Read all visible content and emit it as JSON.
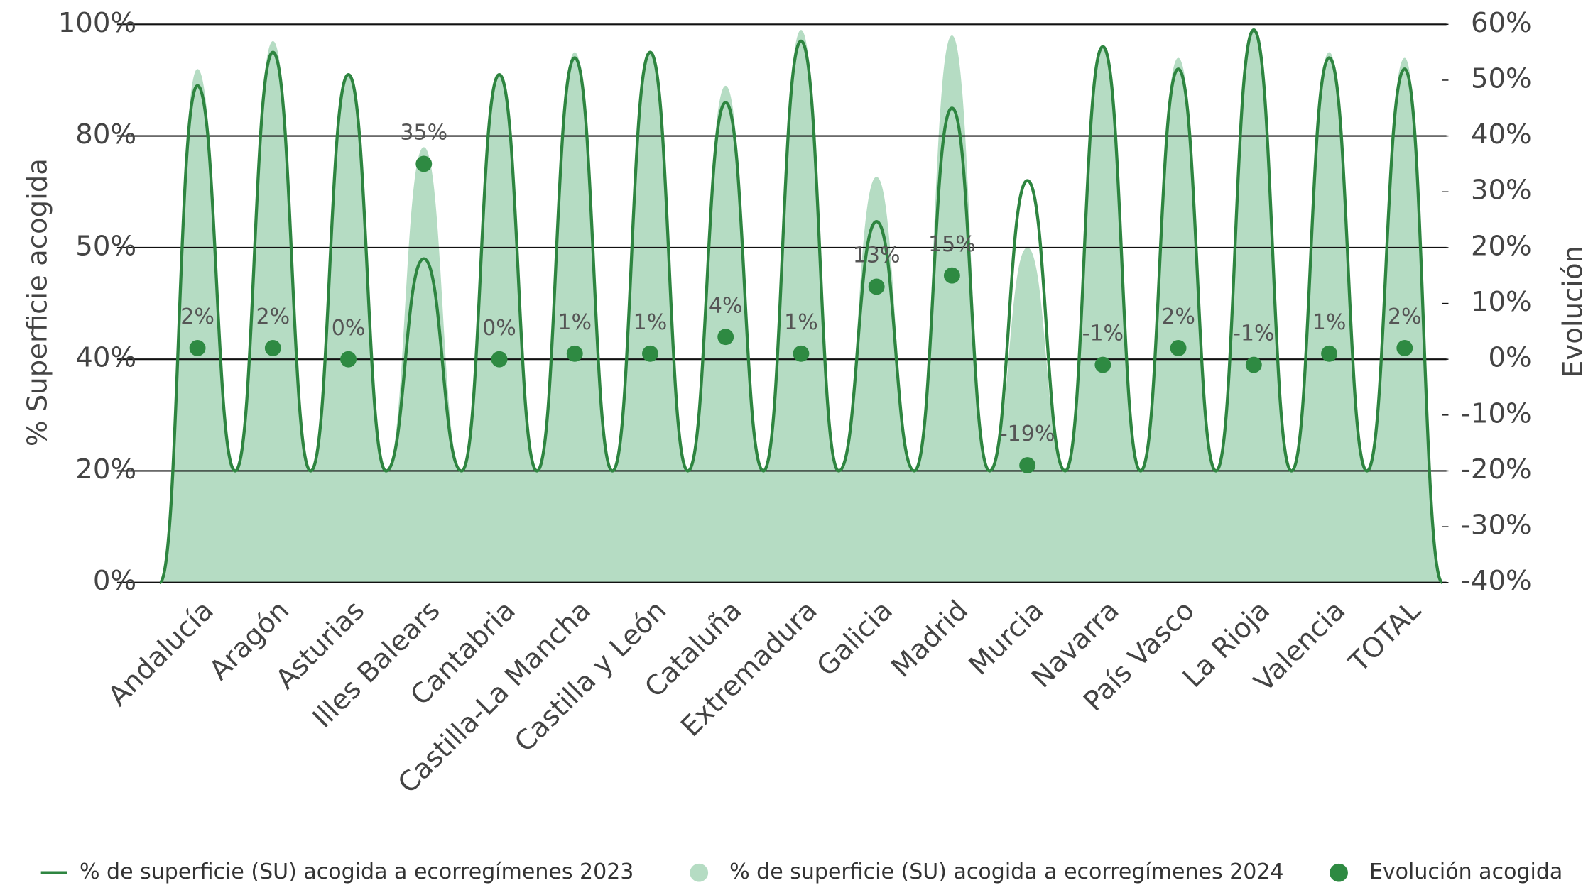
{
  "chart_data": {
    "type": "combo",
    "ylabel": "% Superficie acogida",
    "y2label": "Evolución",
    "categories": [
      "Andalucía",
      "Aragón",
      "Asturias",
      "Illes Balears",
      "Cantabria",
      "Castilla-La Mancha",
      "Castilla y León",
      "Cataluña",
      "Extremadura",
      "Galicia",
      "Madrid",
      "Murcia",
      "Navarra",
      "País Vasco",
      "La Rioja",
      "Valencia",
      "TOTAL"
    ],
    "series": [
      {
        "name": "% de superficie (SU) acogida a ecorregímenes 2024",
        "type": "area",
        "color": "#b5dcc3",
        "values": [
          92,
          97,
          91,
          77,
          91,
          95,
          95,
          89,
          99,
          69,
          98,
          50,
          96,
          94,
          99,
          95,
          94
        ]
      },
      {
        "name": "% de superficie (SU) acogida a ecorregímenes 2023",
        "type": "line",
        "color": "#2e8540",
        "values": [
          89,
          95,
          91,
          49,
          91,
          94,
          95,
          86,
          97,
          57,
          85,
          68,
          96,
          92,
          99,
          94,
          92
        ]
      },
      {
        "name": "Evolución acogida",
        "type": "scatter",
        "color": "#2e8a42",
        "axis": "y2",
        "values": [
          2,
          2,
          0,
          35,
          0,
          1,
          1,
          4,
          1,
          13,
          15,
          -19,
          -1,
          2,
          -1,
          1,
          2
        ],
        "value_labels": [
          "2%",
          "2%",
          "0%",
          "35%",
          "0%",
          "1%",
          "1%",
          "4%",
          "1%",
          "13%",
          "15%",
          "-19%",
          "-1%",
          "2%",
          "-1%",
          "1%",
          "2%"
        ]
      }
    ],
    "ylim": [
      0,
      100
    ],
    "yscale": "even-ticks",
    "yticks": [
      {
        "value": 0,
        "label": "0%"
      },
      {
        "value": 20,
        "label": "20%"
      },
      {
        "value": 40,
        "label": "40%"
      },
      {
        "value": 50,
        "label": "50%"
      },
      {
        "value": 80,
        "label": "80%"
      },
      {
        "value": 100,
        "label": "100%"
      }
    ],
    "y2lim": [
      -40,
      60
    ],
    "y2ticks": [
      {
        "value": -40,
        "label": "-40%"
      },
      {
        "value": -30,
        "label": "-30%"
      },
      {
        "value": -20,
        "label": "-20%"
      },
      {
        "value": -10,
        "label": "-10%"
      },
      {
        "value": 0,
        "label": "0%"
      },
      {
        "value": 10,
        "label": "10%"
      },
      {
        "value": 20,
        "label": "20%"
      },
      {
        "value": 30,
        "label": "30%"
      },
      {
        "value": 40,
        "label": "40%"
      },
      {
        "value": 50,
        "label": "50%"
      },
      {
        "value": 60,
        "label": "60%"
      }
    ],
    "grid": true,
    "legend": "bottom"
  }
}
